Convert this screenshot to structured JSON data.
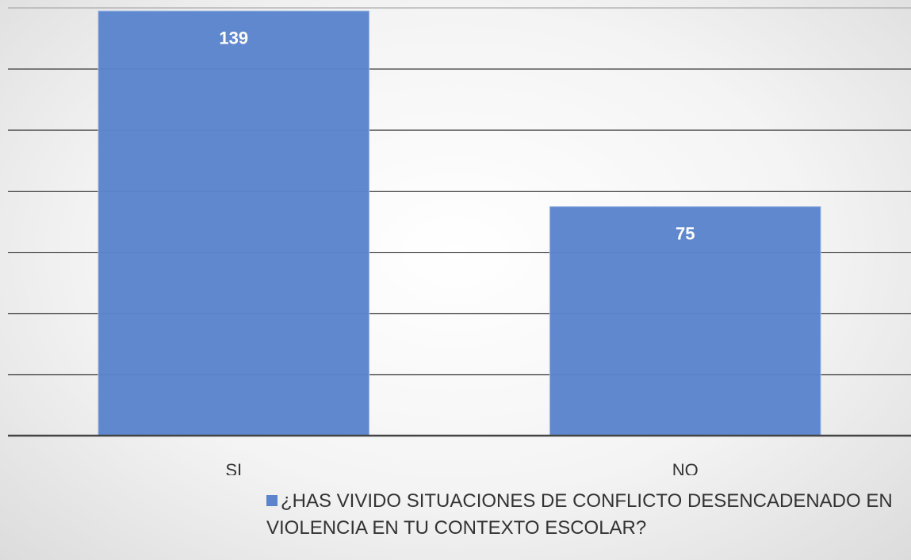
{
  "chart_data": {
    "type": "bar",
    "categories": [
      "SI",
      "NO"
    ],
    "series": [
      {
        "name": "¿HAS VIVIDO SITUACIONES DE CONFLICTO DESENCADENADO EN VIOLENCIA EN TU CONTEXTO ESCOLAR?",
        "color": "#5b84cc",
        "values": [
          139,
          75
        ]
      }
    ],
    "ylim": [
      0,
      140
    ],
    "yticks": [
      0,
      20,
      40,
      60,
      80,
      100,
      120,
      140
    ],
    "grid": true,
    "legend": "bottom"
  }
}
